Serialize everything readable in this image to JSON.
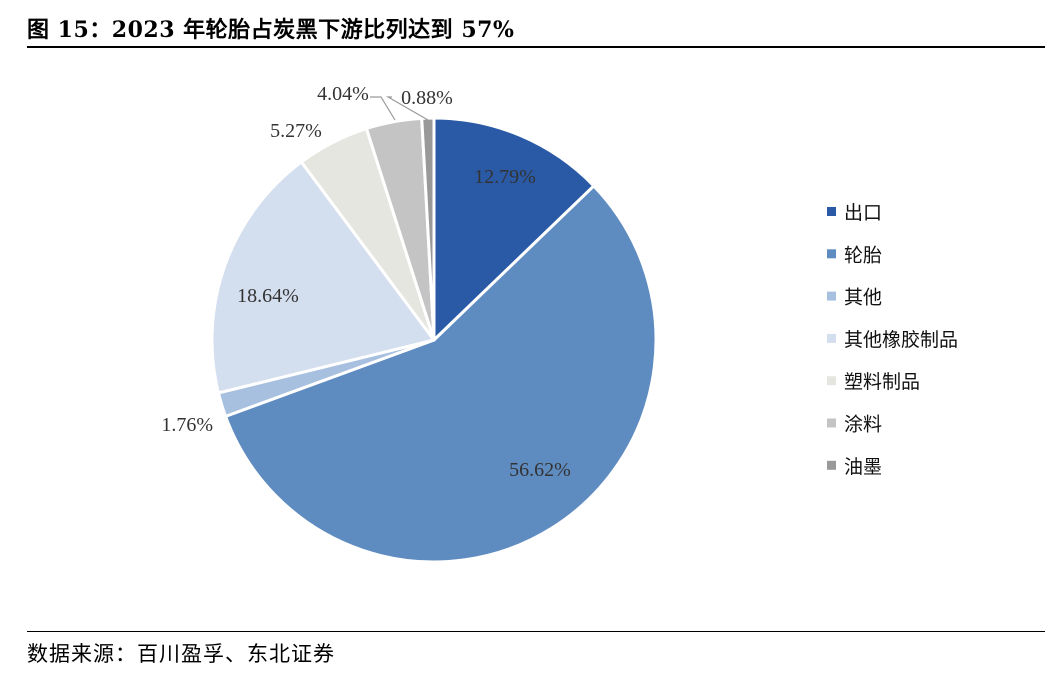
{
  "header": {
    "title": "图 15：2023 年轮胎占炭黑下游比列达到 57%"
  },
  "footer": {
    "source": "数据来源：百川盈孚、东北证券"
  },
  "chart_data": {
    "type": "pie",
    "title": "图 15：2023 年轮胎占炭黑下游比列达到 57%",
    "start_angle_deg": 0,
    "direction": "clockwise",
    "legend_position": "right",
    "slices": [
      {
        "name": "出口",
        "value": 12.79,
        "label": "12.79%",
        "color": "#2a5aa5"
      },
      {
        "name": "轮胎",
        "value": 56.62,
        "label": "56.62%",
        "color": "#5f8cc0"
      },
      {
        "name": "其他",
        "value": 1.76,
        "label": "1.76%",
        "color": "#a8c0e0"
      },
      {
        "name": "其他橡胶制品",
        "value": 18.64,
        "label": "18.64%",
        "color": "#d3deee"
      },
      {
        "name": "塑料制品",
        "value": 5.27,
        "label": "5.27%",
        "color": "#e6e6e0"
      },
      {
        "name": "涂料",
        "value": 4.04,
        "label": "4.04%",
        "color": "#c4c4c4"
      },
      {
        "name": "油墨",
        "value": 0.88,
        "label": "0.88%",
        "color": "#999999"
      }
    ]
  }
}
